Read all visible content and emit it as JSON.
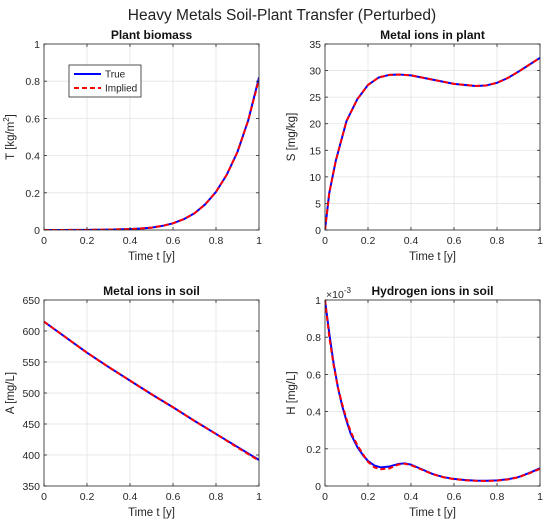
{
  "figure": {
    "title": "Heavy Metals Soil-Plant Transfer (Perturbed)"
  },
  "chart_data": [
    {
      "type": "line",
      "title": "Plant biomass",
      "xlabel": "Time t [y]",
      "ylabel": "T [kg/m",
      "ylabel_sup": "2",
      "ylabel_end": "]",
      "xlim": [
        0,
        1
      ],
      "ylim": [
        0,
        1
      ],
      "xticks": [
        0,
        0.2,
        0.4,
        0.6,
        0.8,
        1
      ],
      "xticklabels": [
        "0",
        "0.2",
        "0.4",
        "0.6",
        "0.8",
        "1"
      ],
      "yticks": [
        0,
        0.2,
        0.4,
        0.6,
        0.8,
        1
      ],
      "yticklabels": [
        "0",
        "0.2",
        "0.4",
        "0.6",
        "0.8",
        "1"
      ],
      "grid": true,
      "legend": {
        "position": "upper-left",
        "entries": [
          "True",
          "Implied"
        ]
      },
      "series": [
        {
          "name": "True",
          "color": "#0000ff",
          "style": "solid",
          "x": [
            0,
            0.1,
            0.2,
            0.3,
            0.4,
            0.45,
            0.5,
            0.55,
            0.6,
            0.65,
            0.7,
            0.75,
            0.8,
            0.85,
            0.9,
            0.95,
            1.0
          ],
          "y": [
            0,
            0.0003,
            0.0008,
            0.002,
            0.005,
            0.008,
            0.013,
            0.022,
            0.036,
            0.058,
            0.09,
            0.138,
            0.205,
            0.297,
            0.42,
            0.59,
            0.82
          ]
        },
        {
          "name": "Implied",
          "color": "#ff0000",
          "style": "dashed",
          "x": [
            0,
            0.1,
            0.2,
            0.3,
            0.4,
            0.45,
            0.5,
            0.55,
            0.6,
            0.65,
            0.7,
            0.75,
            0.8,
            0.85,
            0.9,
            0.95,
            1.0
          ],
          "y": [
            0,
            0.0003,
            0.0008,
            0.002,
            0.005,
            0.008,
            0.013,
            0.022,
            0.036,
            0.058,
            0.09,
            0.138,
            0.205,
            0.297,
            0.42,
            0.59,
            0.81
          ]
        }
      ]
    },
    {
      "type": "line",
      "title": "Metal ions in plant",
      "xlabel": "Time t [y]",
      "ylabel": "S [mg/kg]",
      "xlim": [
        0,
        1
      ],
      "ylim": [
        0,
        35
      ],
      "xticks": [
        0,
        0.2,
        0.4,
        0.6,
        0.8,
        1
      ],
      "xticklabels": [
        "0",
        "0.2",
        "0.4",
        "0.6",
        "0.8",
        "1"
      ],
      "yticks": [
        0,
        5,
        10,
        15,
        20,
        25,
        30,
        35
      ],
      "yticklabels": [
        "0",
        "5",
        "10",
        "15",
        "20",
        "25",
        "30",
        "35"
      ],
      "grid": true,
      "series": [
        {
          "name": "True",
          "color": "#0000ff",
          "style": "solid",
          "x": [
            0,
            0.02,
            0.05,
            0.08,
            0.1,
            0.15,
            0.2,
            0.25,
            0.3,
            0.35,
            0.4,
            0.5,
            0.6,
            0.7,
            0.75,
            0.8,
            0.85,
            0.9,
            0.95,
            1.0
          ],
          "y": [
            0,
            7,
            13,
            17.5,
            20.5,
            24.6,
            27.3,
            28.7,
            29.2,
            29.25,
            29.1,
            28.3,
            27.5,
            27.1,
            27.2,
            27.7,
            28.6,
            29.8,
            31.1,
            32.4
          ]
        },
        {
          "name": "Implied",
          "color": "#ff0000",
          "style": "dashed",
          "x": [
            0,
            0.02,
            0.05,
            0.08,
            0.1,
            0.15,
            0.2,
            0.25,
            0.3,
            0.35,
            0.4,
            0.5,
            0.6,
            0.7,
            0.75,
            0.8,
            0.85,
            0.9,
            0.95,
            1.0
          ],
          "y": [
            0,
            7,
            13,
            17.5,
            20.5,
            24.6,
            27.3,
            28.7,
            29.2,
            29.25,
            29.1,
            28.3,
            27.5,
            27.1,
            27.2,
            27.7,
            28.6,
            29.8,
            31.1,
            32.4
          ]
        }
      ]
    },
    {
      "type": "line",
      "title": "Metal ions in soil",
      "xlabel": "Time t [y]",
      "ylabel": "A [mg/L]",
      "xlim": [
        0,
        1
      ],
      "ylim": [
        350,
        650
      ],
      "xticks": [
        0,
        0.2,
        0.4,
        0.6,
        0.8,
        1
      ],
      "xticklabels": [
        "0",
        "0.2",
        "0.4",
        "0.6",
        "0.8",
        "1"
      ],
      "yticks": [
        350,
        400,
        450,
        500,
        550,
        600,
        650
      ],
      "yticklabels": [
        "350",
        "400",
        "450",
        "500",
        "550",
        "600",
        "650"
      ],
      "grid": true,
      "series": [
        {
          "name": "True",
          "color": "#0000ff",
          "style": "solid",
          "x": [
            0,
            0.1,
            0.2,
            0.3,
            0.4,
            0.5,
            0.6,
            0.7,
            0.8,
            0.9,
            1.0
          ],
          "y": [
            615,
            590,
            565,
            542,
            520,
            498,
            477,
            455,
            434,
            413,
            392
          ]
        },
        {
          "name": "Implied",
          "color": "#ff0000",
          "style": "dashed",
          "x": [
            0,
            0.1,
            0.2,
            0.3,
            0.4,
            0.5,
            0.6,
            0.7,
            0.8,
            0.9,
            1.0
          ],
          "y": [
            615,
            590,
            565,
            542,
            520,
            498,
            477,
            455,
            434,
            412,
            391
          ]
        }
      ]
    },
    {
      "type": "line",
      "title": "Hydrogen ions in soil",
      "xlabel": "Time t [y]",
      "ylabel": "H [mg/L]",
      "exponent_label": "×10",
      "exponent_power": "-3",
      "xlim": [
        0,
        1
      ],
      "ylim": [
        0,
        1
      ],
      "xticks": [
        0,
        0.2,
        0.4,
        0.6,
        0.8,
        1
      ],
      "xticklabels": [
        "0",
        "0.2",
        "0.4",
        "0.6",
        "0.8",
        "1"
      ],
      "yticks": [
        0,
        0.2,
        0.4,
        0.6,
        0.8,
        1
      ],
      "yticklabels": [
        "0",
        "0.2",
        "0.4",
        "0.6",
        "0.8",
        "1"
      ],
      "grid": true,
      "series": [
        {
          "name": "True",
          "color": "#0000ff",
          "style": "solid",
          "x": [
            0,
            0.02,
            0.04,
            0.06,
            0.08,
            0.1,
            0.12,
            0.15,
            0.18,
            0.2,
            0.23,
            0.26,
            0.3,
            0.34,
            0.37,
            0.4,
            0.45,
            0.5,
            0.55,
            0.6,
            0.65,
            0.7,
            0.75,
            0.8,
            0.85,
            0.9,
            0.95,
            1.0
          ],
          "y": [
            1.0,
            0.82,
            0.66,
            0.53,
            0.43,
            0.35,
            0.28,
            0.21,
            0.16,
            0.135,
            0.11,
            0.1,
            0.105,
            0.118,
            0.122,
            0.115,
            0.09,
            0.065,
            0.048,
            0.038,
            0.032,
            0.029,
            0.028,
            0.03,
            0.036,
            0.048,
            0.07,
            0.095
          ]
        },
        {
          "name": "Implied",
          "color": "#ff0000",
          "style": "dashed",
          "x": [
            0,
            0.02,
            0.04,
            0.06,
            0.08,
            0.1,
            0.12,
            0.15,
            0.18,
            0.2,
            0.23,
            0.26,
            0.3,
            0.34,
            0.37,
            0.4,
            0.45,
            0.5,
            0.55,
            0.6,
            0.65,
            0.7,
            0.75,
            0.8,
            0.85,
            0.9,
            0.95,
            1.0
          ],
          "y": [
            1.0,
            0.8,
            0.65,
            0.53,
            0.44,
            0.36,
            0.29,
            0.22,
            0.165,
            0.13,
            0.1,
            0.09,
            0.095,
            0.115,
            0.12,
            0.112,
            0.088,
            0.064,
            0.047,
            0.037,
            0.031,
            0.028,
            0.027,
            0.029,
            0.035,
            0.047,
            0.068,
            0.092
          ]
        }
      ]
    }
  ]
}
